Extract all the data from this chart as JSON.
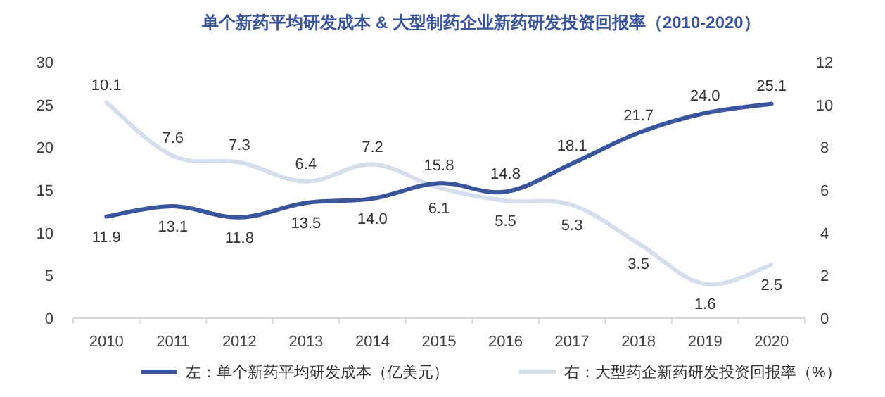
{
  "chart_data": {
    "type": "line",
    "title": "单个新药平均研发成本 & 大型制药企业新药研发投资回报率（2010-2020）",
    "categories": [
      "2010",
      "2011",
      "2012",
      "2013",
      "2014",
      "2015",
      "2016",
      "2017",
      "2018",
      "2019",
      "2020"
    ],
    "series": [
      {
        "name": "左：单个新药平均研发成本（亿美元）",
        "color": "#3a559b",
        "values": [
          11.9,
          13.1,
          11.8,
          13.5,
          14.0,
          15.8,
          14.8,
          18.1,
          21.7,
          24.0,
          25.1
        ],
        "value_labels": [
          "11.9",
          "13.1",
          "11.8",
          "13.5",
          "14.0",
          "15.8",
          "14.8",
          "18.1",
          "21.7",
          "24.0",
          "25.1"
        ]
      },
      {
        "name": "右：大型药企新药研发投资回报率（%）",
        "color": "#d5deec",
        "axis": "y2",
        "values": [
          10.1,
          7.6,
          7.3,
          6.4,
          7.2,
          6.1,
          5.5,
          5.3,
          3.5,
          1.6,
          2.5
        ],
        "value_labels": [
          "10.1",
          "7.6",
          "7.3",
          "6.4",
          "7.2",
          "6.1",
          "5.5",
          "5.3",
          "3.5",
          "1.6",
          "2.5"
        ]
      }
    ],
    "ylim": [
      0,
      30
    ],
    "yticks": [
      0,
      5,
      10,
      15,
      20,
      25,
      30
    ],
    "y2lim": [
      0,
      12
    ],
    "y2ticks": [
      0,
      2,
      4,
      6,
      8,
      10,
      12
    ],
    "grid": false,
    "legend": "bottom",
    "marker": "none",
    "line_style": "solid"
  }
}
